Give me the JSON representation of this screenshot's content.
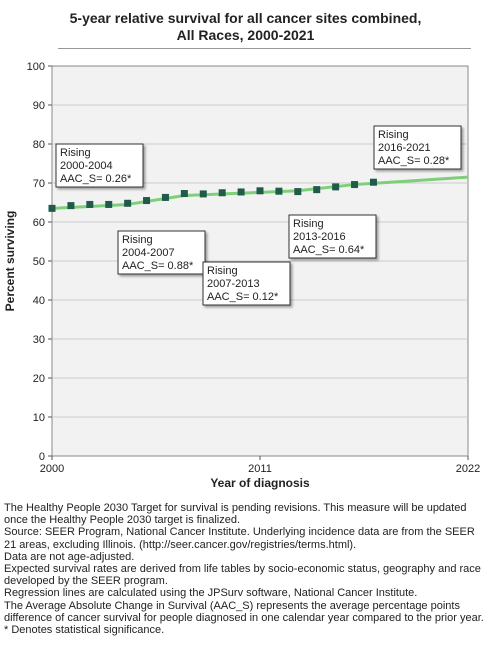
{
  "title_line1": "5-year relative survival for all cancer sites combined,",
  "title_line2": "All Races,  2000-2021",
  "chart_data": {
    "type": "line",
    "title": "5-year relative survival for all cancer sites combined, All Races,  2000-2021",
    "xlabel": "Year of diagnosis",
    "ylabel": "Percent surviving",
    "xlim": [
      2000,
      2022
    ],
    "ylim": [
      0,
      100
    ],
    "x_ticks": [
      "2000",
      "2011",
      "2022"
    ],
    "y_ticks": [
      "0",
      "10",
      "20",
      "30",
      "40",
      "50",
      "60",
      "70",
      "80",
      "90",
      "100"
    ],
    "grid": true,
    "colors": {
      "observed": "#1f5a4a",
      "trend": "#7fcf7a",
      "plot_bg": "#f2f2f2",
      "grid": "#cccccc"
    },
    "series": [
      {
        "type": "scatter",
        "x": [
          2000,
          2001,
          2002,
          2003,
          2004,
          2005,
          2006,
          2007,
          2008,
          2009,
          2010,
          2011,
          2012,
          2013,
          2014,
          2015,
          2016,
          2017
        ],
        "values": [
          63.5,
          64.2,
          64.5,
          64.5,
          64.8,
          65.5,
          66.3,
          67.3,
          67.2,
          67.5,
          67.7,
          68.0,
          67.9,
          67.8,
          68.3,
          69.0,
          69.6,
          70.2
        ]
      },
      {
        "type": "line",
        "x": [
          2000,
          2004,
          2007,
          2013,
          2016,
          2022
        ],
        "values": [
          63.5,
          64.5,
          66.8,
          68.0,
          69.6,
          71.5
        ]
      }
    ],
    "annotations": [
      {
        "lines": [
          "Rising",
          "2000-2004",
          "AAC_S=  0.26*"
        ]
      },
      {
        "lines": [
          "Rising",
          "2004-2007",
          "AAC_S= 0.88*"
        ]
      },
      {
        "lines": [
          "Rising",
          "2007-2013",
          "AAC_S=  0.12*"
        ]
      },
      {
        "lines": [
          "Rising",
          "2013-2016",
          "AAC_S= 0.64*"
        ]
      },
      {
        "lines": [
          "Rising",
          "2016-2021",
          "AAC_S=  0.28*"
        ]
      }
    ]
  },
  "footnotes": [
    "The Healthy People 2030 Target for survival is pending revisions. This measure will be updated once the Healthy People 2030 target is finalized.",
    "Source: SEER Program, National Cancer Institute. Underlying incidence data are from the SEER 21 areas, excluding Illinois. (http://seer.cancer.gov/registries/terms.html).",
    "Data are not age-adjusted.",
    "Expected survival rates are derived from life tables by socio-economic status, geography and race developed by the SEER program.",
    "Regression lines are calculated using the JPSurv software, National Cancer Institute.",
    "The Average Absolute Change in Survival (AAC_S) represents the average percentage points difference of cancer survival for people diagnosed in one calendar year compared to the prior year.",
    "* Denotes statistical significance."
  ]
}
